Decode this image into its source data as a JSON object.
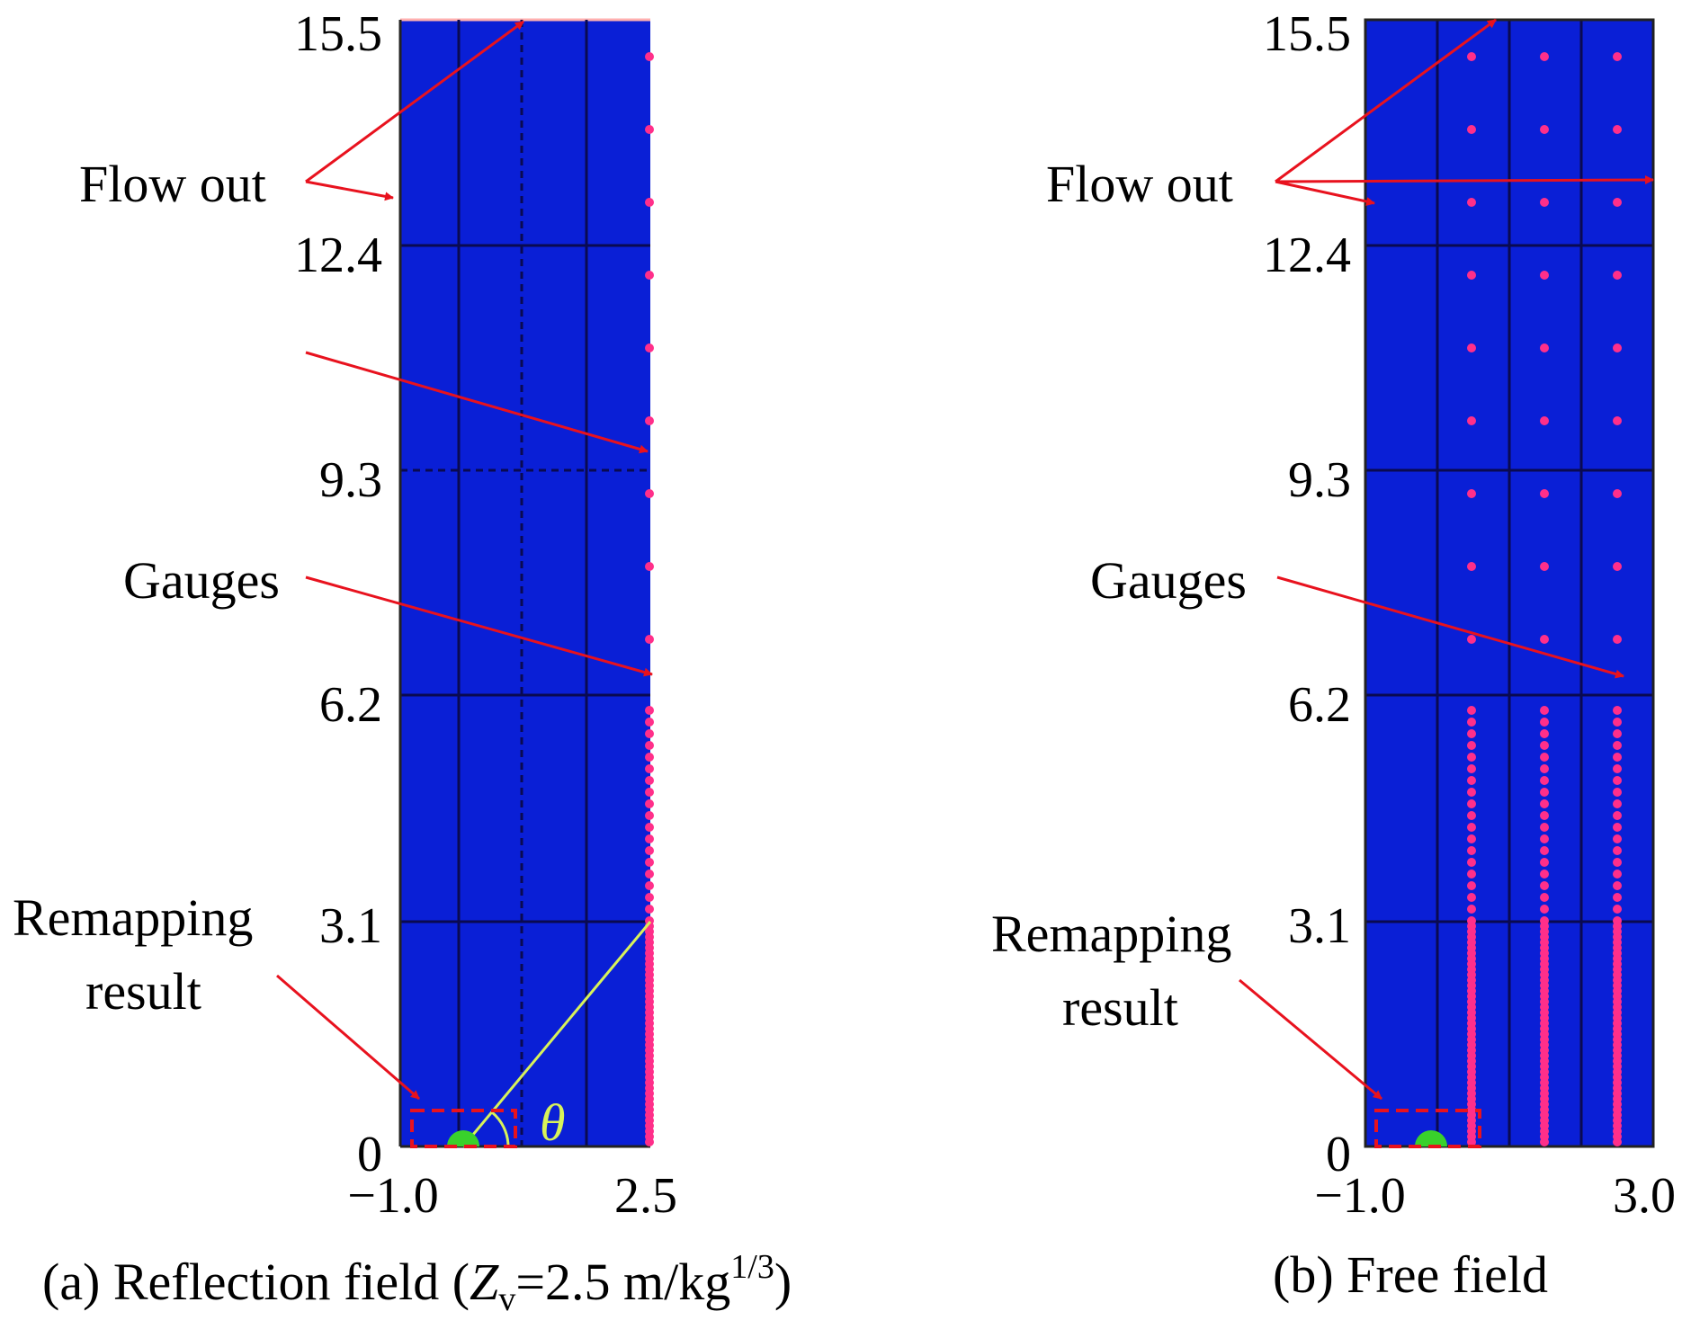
{
  "colors": {
    "domain": "#0a1fd6",
    "grid": "#0a0a50",
    "gauge": "#ff2f8a",
    "arrow": "#e8121e",
    "remap_box": "#e8121e",
    "charge": "#39d12b",
    "theta_line": "#d8f25a"
  },
  "panel_a": {
    "y_ticks": [
      "15.5",
      "12.4",
      "9.3",
      "6.2",
      "3.1",
      "0"
    ],
    "x_ticks": [
      "−1.0",
      "2.5"
    ],
    "flow_out_label": "Flow out",
    "gauges_label": "Gauges",
    "remap_label_line1": "Remapping",
    "remap_label_line2": "result",
    "theta_symbol": "θ",
    "caption_prefix": "(a) Reflection field (",
    "caption_z": "Z",
    "caption_sub": "v",
    "caption_mid": "=2.5 m/kg",
    "caption_sup": "1/3",
    "caption_suffix": ")"
  },
  "panel_b": {
    "y_ticks": [
      "15.5",
      "12.4",
      "9.3",
      "6.2",
      "3.1",
      "0"
    ],
    "x_ticks": [
      "−1.0",
      "3.0"
    ],
    "flow_out_label": "Flow out",
    "gauges_label": "Gauges",
    "remap_label_line1": "Remapping",
    "remap_label_line2": "result",
    "caption": "(b) Free field"
  }
}
